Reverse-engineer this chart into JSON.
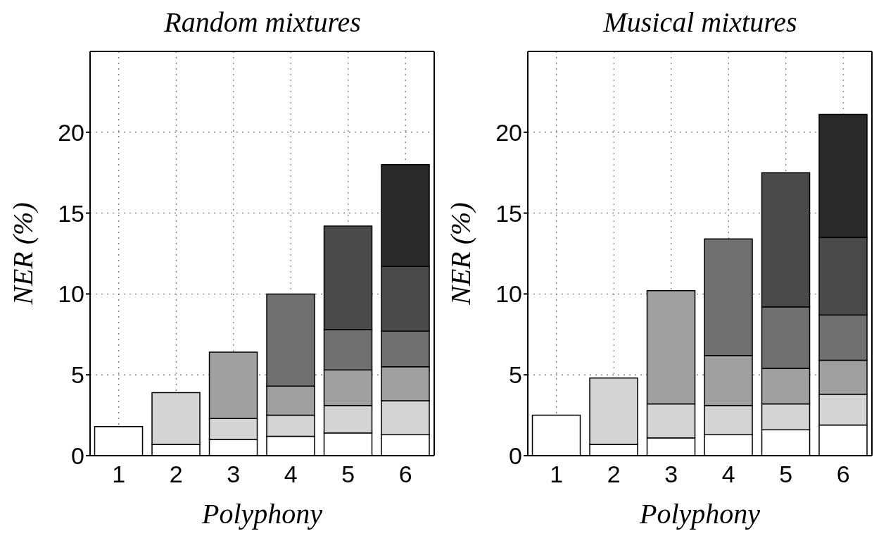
{
  "chart_data": [
    {
      "type": "bar",
      "stacked": true,
      "title": "Random mixtures",
      "xlabel": "Polyphony",
      "ylabel": "NER (%)",
      "categories": [
        "1",
        "2",
        "3",
        "4",
        "5",
        "6"
      ],
      "ylim": [
        0,
        25
      ],
      "yticks": [
        0,
        5,
        10,
        15,
        20
      ],
      "grid": true,
      "series": [
        {
          "color": "#ffffff",
          "values": [
            1.8,
            0.7,
            1.0,
            1.2,
            1.4,
            1.3
          ]
        },
        {
          "color": "#d4d4d4",
          "values": [
            null,
            3.2,
            1.3,
            1.3,
            1.7,
            2.1
          ]
        },
        {
          "color": "#a0a0a0",
          "values": [
            null,
            null,
            4.1,
            1.8,
            2.2,
            2.1
          ]
        },
        {
          "color": "#707070",
          "values": [
            null,
            null,
            null,
            5.7,
            2.5,
            2.2
          ]
        },
        {
          "color": "#4a4a4a",
          "values": [
            null,
            null,
            null,
            null,
            6.4,
            4.0
          ]
        },
        {
          "color": "#2a2a2a",
          "values": [
            null,
            null,
            null,
            null,
            null,
            6.3
          ]
        }
      ]
    },
    {
      "type": "bar",
      "stacked": true,
      "title": "Musical mixtures",
      "xlabel": "Polyphony",
      "ylabel": "NER (%)",
      "categories": [
        "1",
        "2",
        "3",
        "4",
        "5",
        "6"
      ],
      "ylim": [
        0,
        25
      ],
      "yticks": [
        0,
        5,
        10,
        15,
        20
      ],
      "grid": true,
      "series": [
        {
          "color": "#ffffff",
          "values": [
            2.5,
            0.7,
            1.1,
            1.3,
            1.6,
            1.9
          ]
        },
        {
          "color": "#d4d4d4",
          "values": [
            null,
            4.1,
            2.1,
            1.8,
            1.6,
            1.9
          ]
        },
        {
          "color": "#a0a0a0",
          "values": [
            null,
            null,
            7.0,
            3.1,
            2.2,
            2.1
          ]
        },
        {
          "color": "#707070",
          "values": [
            null,
            null,
            null,
            7.2,
            3.8,
            2.8
          ]
        },
        {
          "color": "#4a4a4a",
          "values": [
            null,
            null,
            null,
            null,
            8.3,
            4.8
          ]
        },
        {
          "color": "#2a2a2a",
          "values": [
            null,
            null,
            null,
            null,
            null,
            7.6
          ]
        }
      ]
    }
  ]
}
